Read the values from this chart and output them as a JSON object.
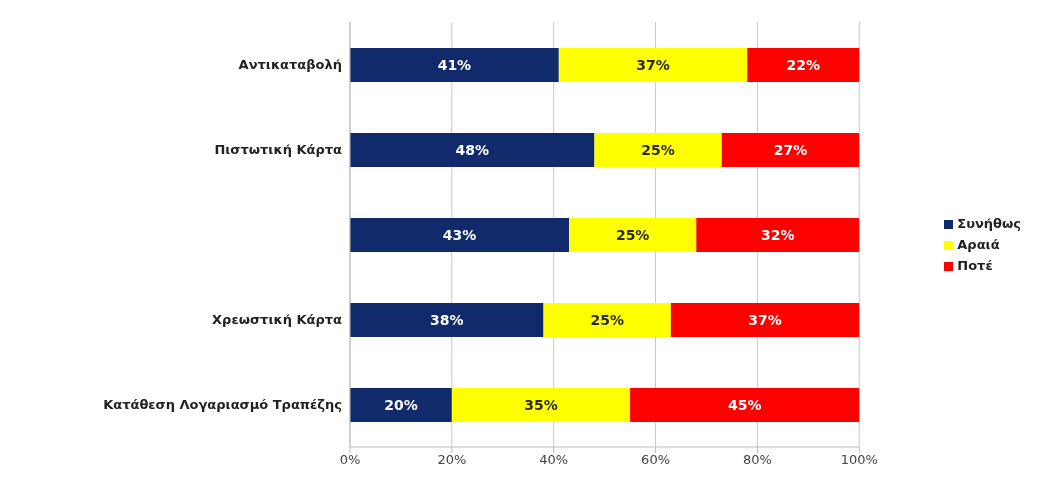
{
  "chart_data": {
    "type": "bar",
    "orientation": "horizontal",
    "stacked": true,
    "categories": [
      "Αντικαταβολή",
      "Πιστωτική Κάρτα",
      null,
      "Χρεωστική Κάρτα",
      "Κατάθεση Λογαριασμό Τραπέζης"
    ],
    "series": [
      {
        "name": "Συνήθως",
        "color": "#112a6b",
        "values": [
          41,
          48,
          43,
          38,
          20
        ],
        "value_labels": [
          "41%",
          "48%",
          "43%",
          "38%",
          "20%"
        ]
      },
      {
        "name": "Αραιά",
        "color": "#ffff00",
        "values": [
          37,
          25,
          25,
          25,
          35
        ],
        "value_labels": [
          "37%",
          "25%",
          "25%",
          "25%",
          "35%"
        ]
      },
      {
        "name": "Ποτέ",
        "color": "#ff0000",
        "values": [
          22,
          27,
          32,
          37,
          45
        ],
        "value_labels": [
          "22%",
          "27%",
          "32%",
          "37%",
          "45%"
        ]
      }
    ],
    "xlim": [
      0,
      100
    ],
    "xticks": [
      {
        "value": 0,
        "label": "0%"
      },
      {
        "value": 20,
        "label": "20%"
      },
      {
        "value": 40,
        "label": "40%"
      },
      {
        "value": 60,
        "label": "60%"
      },
      {
        "value": 80,
        "label": "80%"
      },
      {
        "value": 100,
        "label": "100%"
      }
    ],
    "grid": "x",
    "legend": "right"
  }
}
